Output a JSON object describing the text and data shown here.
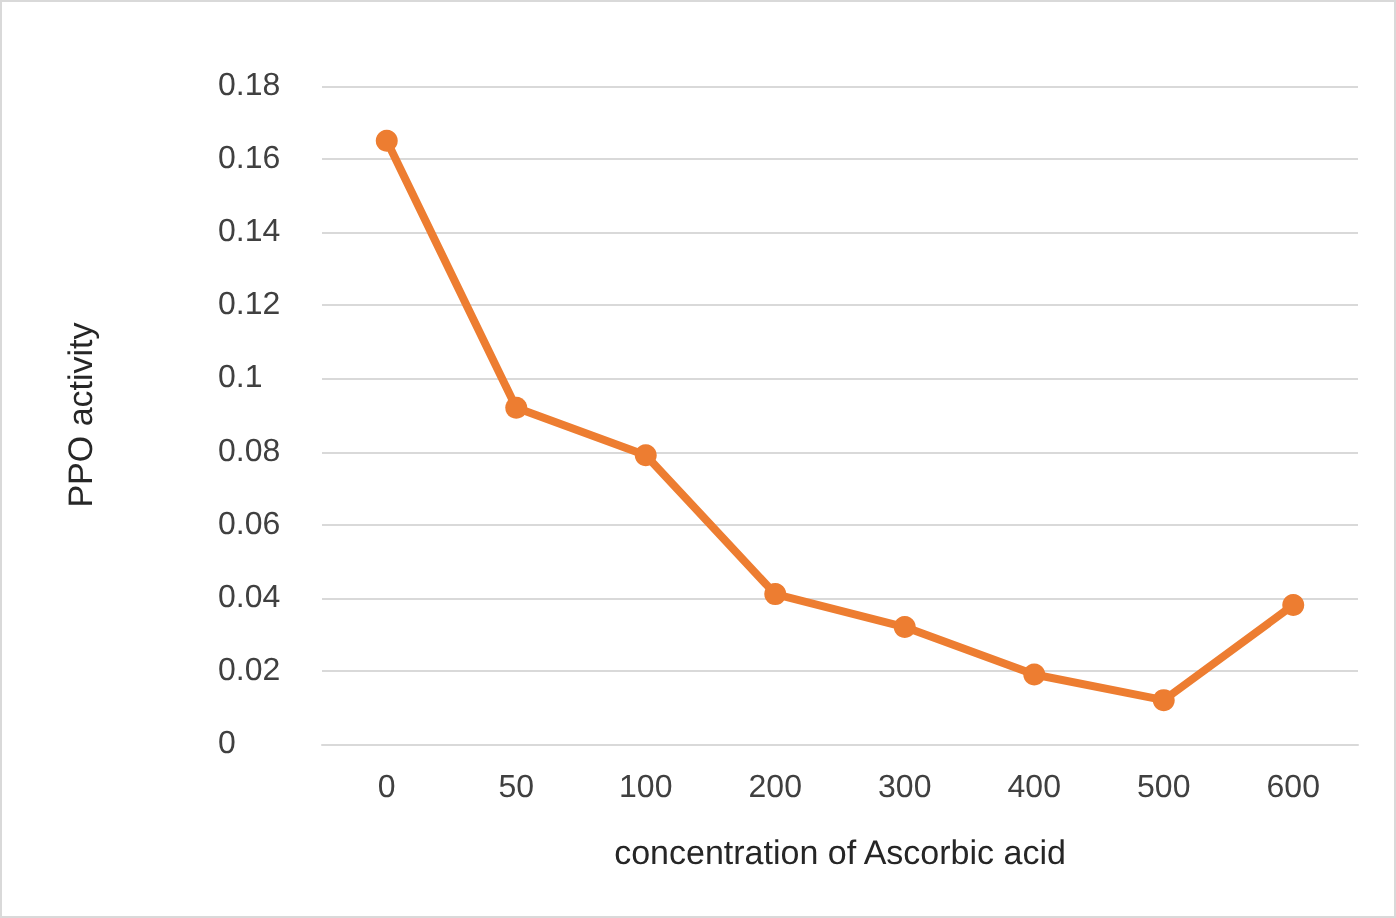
{
  "chart_data": {
    "type": "line",
    "xlabel": "concentration of Ascorbic acid",
    "ylabel": "PPO activity",
    "categories": [
      "0",
      "50",
      "100",
      "200",
      "300",
      "400",
      "500",
      "600"
    ],
    "series": [
      {
        "color": "#ed7d31",
        "values": [
          0.165,
          0.092,
          0.079,
          0.041,
          0.032,
          0.019,
          0.012,
          0.038
        ]
      }
    ],
    "ylim": [
      0,
      0.18
    ],
    "yticks": [
      0,
      0.02,
      0.04,
      0.06,
      0.08,
      0.1,
      0.12,
      0.14,
      0.16,
      0.18
    ],
    "grid": "y",
    "legend": false,
    "marker": "circle",
    "line_style": "solid"
  }
}
